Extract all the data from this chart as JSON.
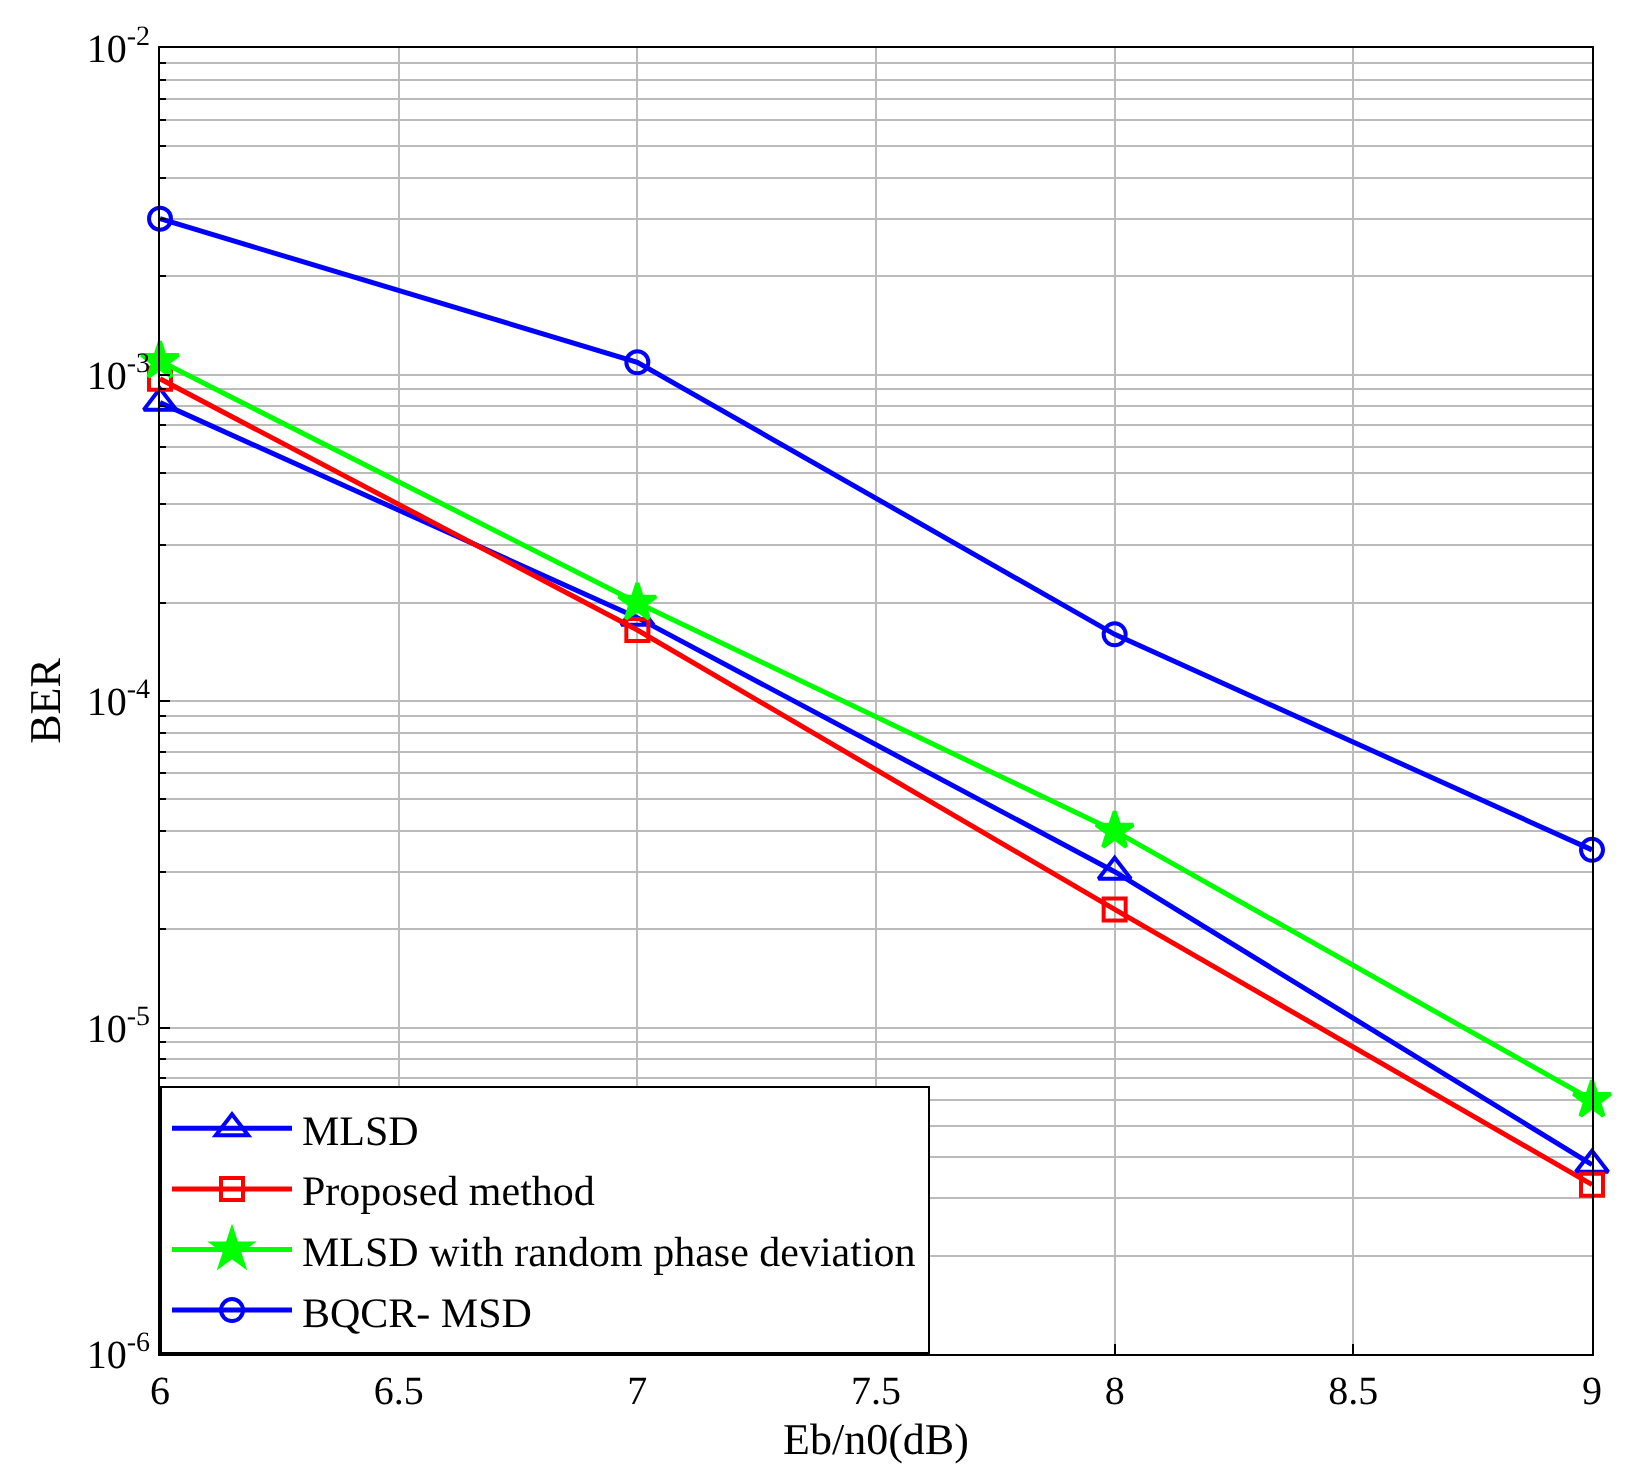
{
  "chart_data": {
    "type": "line",
    "xlabel": "Eb/n0(dB)",
    "ylabel": "BER",
    "x": [
      6,
      7,
      8,
      9
    ],
    "series": [
      {
        "name": "MLSD",
        "color": "#0000ff",
        "marker": "triangle",
        "values": [
          0.00082,
          0.00018,
          3e-05,
          3.8e-06
        ]
      },
      {
        "name": "Proposed method",
        "color": "#ff0000",
        "marker": "square",
        "values": [
          0.00097,
          0.000165,
          2.3e-05,
          3.3e-06
        ]
      },
      {
        "name": "MLSD with random phase deviation",
        "color": "#00ff00",
        "marker": "star",
        "values": [
          0.0011,
          0.0002,
          4e-05,
          6e-06
        ]
      },
      {
        "name": "BQCR- MSD",
        "color": "#0000ff",
        "marker": "circle",
        "values": [
          0.003,
          0.00109,
          0.00016,
          3.5e-05
        ]
      }
    ],
    "xlim": [
      6,
      9
    ],
    "xticks": [
      6,
      6.5,
      7,
      7.5,
      8,
      8.5,
      9
    ],
    "ylim": [
      1e-06,
      0.01
    ],
    "yticks": [
      {
        "value": 1e-06,
        "label": "10$^{-6}$"
      },
      {
        "value": 1e-05,
        "label": "10$^{-5}$"
      },
      {
        "value": 0.0001,
        "label": "10$^{-4}$"
      },
      {
        "value": 0.001,
        "label": "10$^{-3}$"
      },
      {
        "value": 0.01,
        "label": "10$^{-2}$"
      }
    ],
    "log": "y",
    "grid": true,
    "legend": "bottom left",
    "line_style": "solid"
  }
}
